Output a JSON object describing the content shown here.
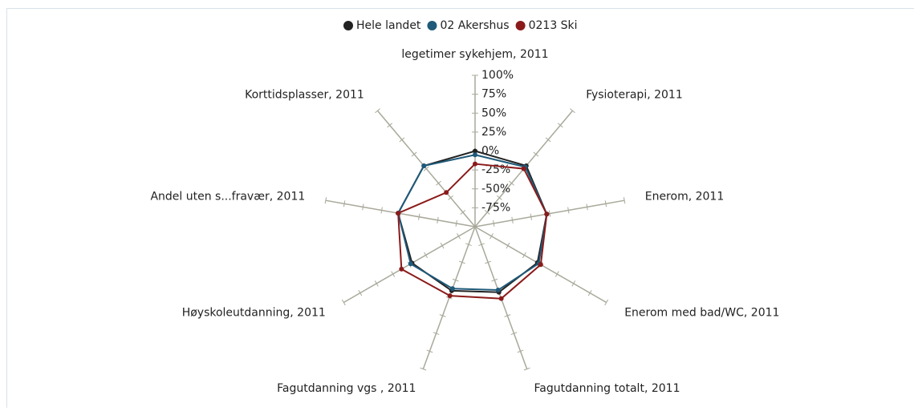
{
  "chart_data": {
    "type": "radar",
    "categories": [
      "legetimer sykehjem, 2011",
      "Fysioterapi, 2011",
      "Enerom, 2011",
      "Enerom med bad/WC, 2011",
      "Fagutdanning totalt, 2011",
      "Fagutdanning vgs , 2011",
      "Høyskoleutdanning, 2011",
      "Andel uten s...fravær, 2011",
      "Korttidsplasser, 2011"
    ],
    "series": [
      {
        "name": "Hele landet",
        "color": "#222222",
        "values": [
          0,
          5,
          -4,
          -5,
          -8,
          -10,
          -4,
          3,
          5
        ]
      },
      {
        "name": "02 Akershus",
        "color": "#1f5a7a",
        "values": [
          -5,
          3,
          -4,
          -3,
          -11,
          -13,
          -2,
          3,
          5
        ]
      },
      {
        "name": "0213 Ski",
        "color": "#8b1a1a",
        "values": [
          -17,
          0,
          -4,
          0,
          1,
          -3,
          12,
          3,
          -41
        ]
      }
    ],
    "rlim": [
      -100,
      100
    ],
    "rticks": [
      {
        "value": -75,
        "label": "-75%"
      },
      {
        "value": -50,
        "label": "-50%"
      },
      {
        "value": -25,
        "label": "-25%"
      },
      {
        "value": 0,
        "label": "0%"
      },
      {
        "value": 25,
        "label": "25%"
      },
      {
        "value": 50,
        "label": "50%"
      },
      {
        "value": 75,
        "label": "75%"
      },
      {
        "value": 100,
        "label": "100%"
      }
    ],
    "legend": "top"
  }
}
